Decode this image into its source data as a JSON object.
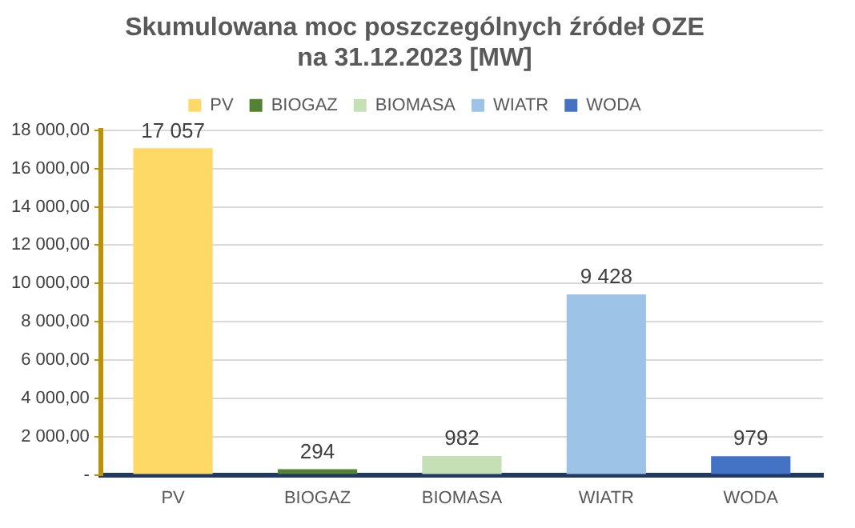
{
  "chart_data": {
    "type": "bar",
    "title": [
      "Skumulowana moc poszczególnych źródeł OZE",
      "na 31.12.2023 [MW]"
    ],
    "categories": [
      "PV",
      "BIOGAZ",
      "BIOMASA",
      "WIATR",
      "WODA"
    ],
    "series": [
      {
        "name": "PV",
        "color": "#ffd966",
        "values": [
          17057,
          null,
          null,
          null,
          null
        ]
      },
      {
        "name": "BIOGAZ",
        "color": "#548235",
        "values": [
          null,
          294,
          null,
          null,
          null
        ]
      },
      {
        "name": "BIOMASA",
        "color": "#c5e0b4",
        "values": [
          null,
          null,
          982,
          null,
          null
        ]
      },
      {
        "name": "WIATR",
        "color": "#9dc3e6",
        "values": [
          null,
          null,
          null,
          9428,
          null
        ]
      },
      {
        "name": "WODA",
        "color": "#4472c4",
        "values": [
          null,
          null,
          null,
          null,
          979
        ]
      }
    ],
    "value_labels": [
      "17 057",
      "294",
      "982",
      "9 428",
      "979"
    ],
    "ylim": [
      0,
      18000
    ],
    "yticks": [
      {
        "value": 0,
        "label": "-"
      },
      {
        "value": 2000,
        "label": "2 000,00"
      },
      {
        "value": 4000,
        "label": "4 000,00"
      },
      {
        "value": 6000,
        "label": "6 000,00"
      },
      {
        "value": 8000,
        "label": "8 000,00"
      },
      {
        "value": 10000,
        "label": "10 000,00"
      },
      {
        "value": 12000,
        "label": "12 000,00"
      },
      {
        "value": 14000,
        "label": "14 000,00"
      },
      {
        "value": 16000,
        "label": "16 000,00"
      },
      {
        "value": 18000,
        "label": "18 000,00"
      }
    ],
    "grid": "y",
    "legend": "top"
  }
}
